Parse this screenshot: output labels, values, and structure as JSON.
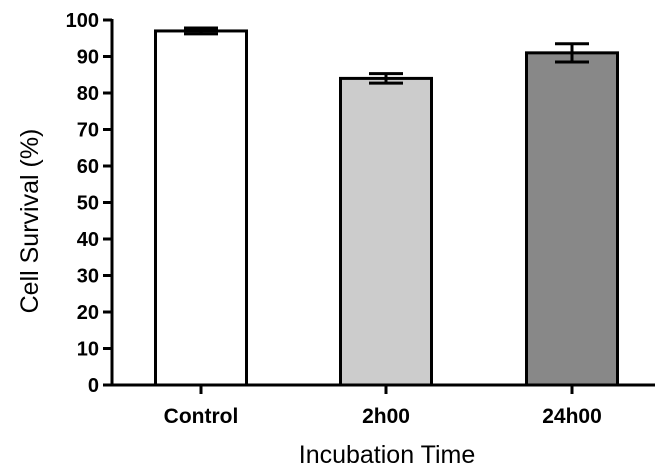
{
  "chart_data": {
    "type": "bar",
    "categories": [
      "Control",
      "2h00",
      "24h00"
    ],
    "values": [
      97,
      84,
      91
    ],
    "errors": [
      0.8,
      1.3,
      2.5
    ],
    "colors": [
      "#ffffff",
      "#cccccc",
      "#888888"
    ],
    "xlabel": "Incubation Time",
    "ylabel": "Cell  Survival (%)",
    "ylim": [
      0,
      100
    ],
    "yticks": [
      0,
      10,
      20,
      30,
      40,
      50,
      60,
      70,
      80,
      90,
      100
    ],
    "grid": false,
    "legend": "none"
  }
}
